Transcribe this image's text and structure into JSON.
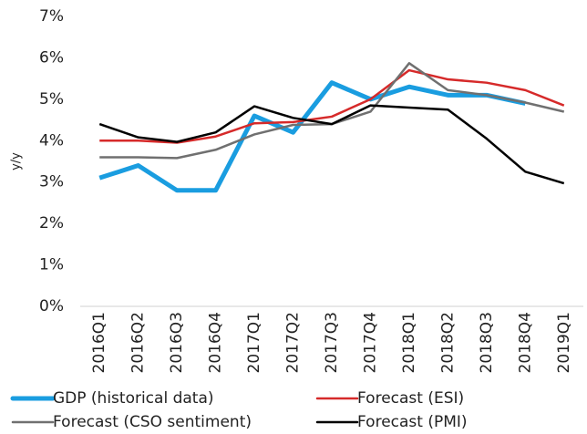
{
  "chart_data": {
    "type": "line",
    "y_label": "y/y",
    "categories": [
      "2016Q1",
      "2016Q2",
      "2016Q3",
      "2016Q4",
      "2017Q1",
      "2017Q2",
      "2017Q3",
      "2017Q4",
      "2018Q1",
      "2018Q2",
      "2018Q3",
      "2018Q4",
      "2019Q1"
    ],
    "series": [
      {
        "name": "GDP (historical data)",
        "color": "#1a9de0",
        "values": [
          3.1,
          3.4,
          2.8,
          2.8,
          4.6,
          4.2,
          5.4,
          5.0,
          5.3,
          5.1,
          5.1,
          4.9,
          null
        ]
      },
      {
        "name": "Forecast (ESI)",
        "color": "#d62a2a",
        "values": [
          4.0,
          4.0,
          3.95,
          4.1,
          4.42,
          4.45,
          4.58,
          5.0,
          5.7,
          5.48,
          5.4,
          5.22,
          4.85
        ]
      },
      {
        "name": "Forecast (CSO sentiment)",
        "color": "#707070",
        "values": [
          3.6,
          3.6,
          3.58,
          3.78,
          4.15,
          4.38,
          4.4,
          4.7,
          5.87,
          5.22,
          5.1,
          4.92,
          4.7
        ]
      },
      {
        "name": "Forecast (PMI)",
        "color": "#000000",
        "values": [
          4.4,
          4.08,
          3.97,
          4.2,
          4.83,
          4.55,
          4.4,
          4.85,
          4.8,
          4.75,
          4.05,
          3.25,
          2.97
        ]
      }
    ],
    "ylim": [
      0,
      7
    ],
    "yticks": [
      {
        "value": 0,
        "label": "0%"
      },
      {
        "value": 1,
        "label": "1%"
      },
      {
        "value": 2,
        "label": "2%"
      },
      {
        "value": 3,
        "label": "3%"
      },
      {
        "value": 4,
        "label": "4%"
      },
      {
        "value": 5,
        "label": "5%"
      },
      {
        "value": 6,
        "label": "6%"
      },
      {
        "value": 7,
        "label": "7%"
      }
    ],
    "grid": false,
    "legend": "bottom"
  }
}
